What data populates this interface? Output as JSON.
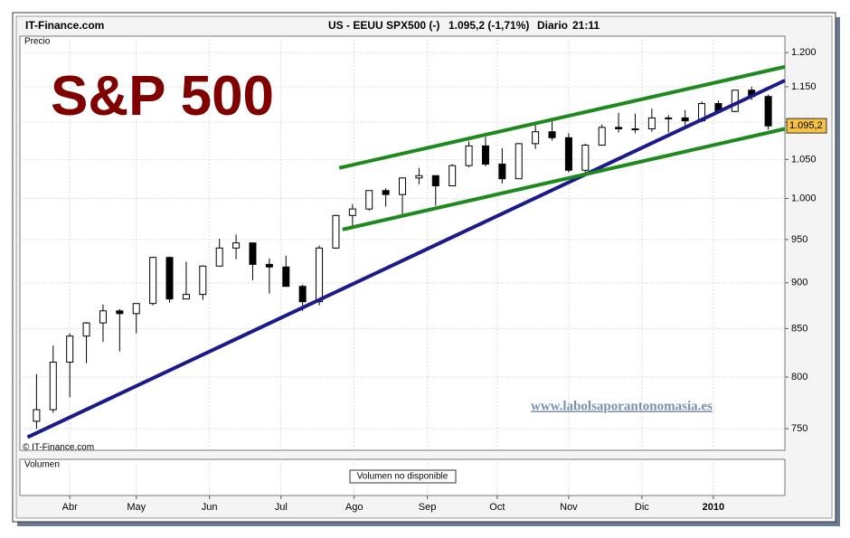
{
  "header": {
    "site": "IT-Finance.com",
    "instrument": "US - EEUU SPX500 (-)",
    "quote": "1.095,2 (-1,71%)",
    "period": "Diario",
    "time": "21:11"
  },
  "chart_data": {
    "type": "candlestick",
    "title": "S&P 500",
    "panel_label": "Precio",
    "watermark": "www.labolsaporantonomasia.es",
    "copyright": "© IT-Finance.com",
    "log_scale": true,
    "grid": true,
    "categories": [
      null,
      null,
      null,
      null,
      null,
      null,
      null,
      null,
      null,
      null,
      null,
      null,
      null,
      null,
      null,
      null,
      null,
      null,
      null,
      null,
      null,
      null,
      null,
      null,
      null,
      null,
      null,
      null,
      null,
      null,
      null,
      null,
      null,
      null,
      null,
      null,
      null,
      null,
      null,
      null,
      null,
      null,
      null,
      null,
      null
    ],
    "open": [
      757,
      768,
      815,
      842,
      856,
      869,
      866,
      877,
      929,
      882,
      887,
      919,
      940,
      946,
      921,
      918,
      896,
      879,
      940,
      979,
      987,
      1010,
      1005,
      1026,
      1029,
      1016,
      1042,
      1068,
      1044,
      1025,
      1071,
      1087,
      1079,
      1036,
      1069,
      1093,
      1091,
      1091,
      1106,
      1106,
      1102,
      1126,
      1115,
      1145,
      1136
    ],
    "high": [
      803,
      832,
      845,
      857,
      876,
      871,
      877,
      930,
      930,
      924,
      920,
      951,
      956,
      946,
      928,
      931,
      898,
      943,
      980,
      993,
      1010,
      1013,
      1027,
      1039,
      1029,
      1044,
      1074,
      1080,
      1065,
      1072,
      1101,
      1101,
      1085,
      1071,
      1097,
      1113,
      1112,
      1119,
      1110,
      1117,
      1129,
      1130,
      1145,
      1150,
      1139
    ],
    "low": [
      750,
      765,
      780,
      814,
      836,
      826,
      845,
      875,
      878,
      882,
      881,
      919,
      927,
      903,
      888,
      896,
      869,
      875,
      939,
      965,
      985,
      990,
      978,
      1018,
      991,
      1016,
      1040,
      1041,
      1019,
      1025,
      1064,
      1075,
      1033,
      1030,
      1069,
      1086,
      1085,
      1087,
      1086,
      1095,
      1100,
      1115,
      1114,
      1131,
      1090
    ],
    "close": [
      768,
      815,
      842,
      856,
      869,
      866,
      877,
      929,
      882,
      887,
      919,
      940,
      946,
      921,
      918,
      896,
      879,
      940,
      979,
      987,
      1010,
      1005,
      1026,
      1029,
      1016,
      1042,
      1068,
      1044,
      1025,
      1071,
      1087,
      1079,
      1036,
      1069,
      1093,
      1091,
      1091,
      1106,
      1106,
      1102,
      1126,
      1115,
      1145,
      1136,
      1095
    ],
    "up_color": "#ffffff",
    "down_color": "#000000",
    "last_price": {
      "value": 1095.2,
      "label": "1.095,2"
    },
    "trendlines": [
      {
        "color": "#1a1a8c",
        "x": [
          -0.54,
          45
        ],
        "y": [
          742,
          1159
        ]
      },
      {
        "color": "#1e8a1e",
        "x": [
          18.2,
          45
        ],
        "y": [
          1039,
          1179
        ]
      },
      {
        "color": "#1e8a1e",
        "x": [
          18.4,
          45
        ],
        "y": [
          962,
          1091
        ]
      }
    ],
    "xlim": [
      -1,
      45
    ],
    "xticks": [
      {
        "value": 2,
        "label": "Abr"
      },
      {
        "value": 6,
        "label": "May"
      },
      {
        "value": 10.4,
        "label": "Jun"
      },
      {
        "value": 14.7,
        "label": "Jul"
      },
      {
        "value": 19.1,
        "label": "Ago"
      },
      {
        "value": 23.5,
        "label": "Sep"
      },
      {
        "value": 27.7,
        "label": "Oct"
      },
      {
        "value": 32,
        "label": "Nov"
      },
      {
        "value": 36.4,
        "label": "Dic"
      },
      {
        "value": 40.7,
        "label": "2010"
      }
    ],
    "ylim": [
      730,
      1225
    ],
    "yticks": [
      750,
      800,
      850,
      900,
      950,
      {
        "value": 1000,
        "label": "1.000"
      },
      {
        "value": 1050,
        "label": "1.050"
      },
      {
        "value": 1100,
        "label": "1.100"
      },
      {
        "value": 1150,
        "label": "1.150"
      },
      {
        "value": 1200,
        "label": "1.200"
      }
    ],
    "volume_label": "Volumen",
    "volume_note": "Volumen no disponible"
  }
}
